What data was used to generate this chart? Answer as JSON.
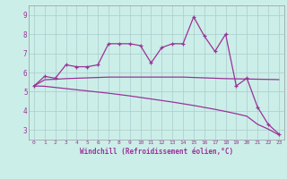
{
  "x": [
    0,
    1,
    2,
    3,
    4,
    5,
    6,
    7,
    8,
    9,
    10,
    11,
    12,
    13,
    14,
    15,
    16,
    17,
    18,
    19,
    20,
    21,
    22,
    23
  ],
  "line1": [
    5.3,
    5.8,
    5.7,
    6.4,
    6.3,
    6.3,
    6.4,
    7.5,
    7.5,
    7.5,
    7.4,
    6.5,
    7.3,
    7.5,
    7.5,
    8.9,
    7.9,
    7.1,
    8.0,
    5.3,
    5.7,
    4.2,
    3.3,
    2.8
  ],
  "line2": [
    5.3,
    5.62,
    5.65,
    5.68,
    5.7,
    5.72,
    5.74,
    5.76,
    5.76,
    5.76,
    5.76,
    5.76,
    5.76,
    5.76,
    5.76,
    5.74,
    5.72,
    5.7,
    5.68,
    5.67,
    5.66,
    5.65,
    5.64,
    5.63
  ],
  "line3": [
    5.3,
    5.28,
    5.22,
    5.16,
    5.1,
    5.04,
    4.98,
    4.92,
    4.85,
    4.78,
    4.7,
    4.62,
    4.54,
    4.46,
    4.37,
    4.28,
    4.18,
    4.08,
    3.97,
    3.85,
    3.72,
    3.3,
    3.05,
    2.75
  ],
  "line_color": "#993399",
  "bg_color": "#cceee8",
  "grid_color": "#aacccc",
  "xlabel": "Windchill (Refroidissement éolien,°C)",
  "ylim": [
    2.5,
    9.5
  ],
  "xlim": [
    -0.5,
    23.5
  ],
  "yticks": [
    3,
    4,
    5,
    6,
    7,
    8,
    9
  ],
  "xticks": [
    0,
    1,
    2,
    3,
    4,
    5,
    6,
    7,
    8,
    9,
    10,
    11,
    12,
    13,
    14,
    15,
    16,
    17,
    18,
    19,
    20,
    21,
    22,
    23
  ],
  "marker": "+"
}
